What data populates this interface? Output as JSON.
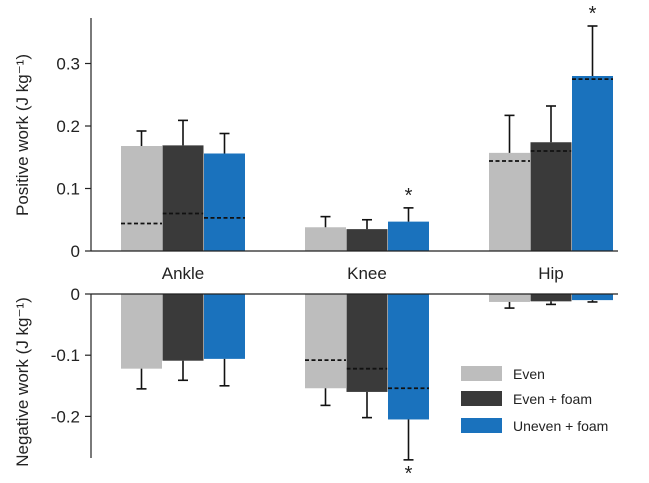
{
  "chart_data": {
    "type": "bar",
    "categories": [
      "Ankle",
      "Knee",
      "Hip"
    ],
    "colors": {
      "Even": "#bdbdbd",
      "Even + foam": "#3a3a3a",
      "Uneven + foam": "#1a72bd"
    },
    "panels": [
      {
        "ylabel": "Positive work (J kg⁻¹)",
        "ylim": [
          0,
          0.37
        ],
        "ticks": [
          0,
          0.1,
          0.2,
          0.3
        ],
        "tick_labels": [
          "0",
          "0.1",
          "0.2",
          "0.3"
        ],
        "series": [
          {
            "name": "Even",
            "values": [
              0.168,
              0.038,
              0.157
            ],
            "errors": [
              0.024,
              0.017,
              0.06
            ],
            "dashed": [
              0.044,
              null,
              0.144
            ]
          },
          {
            "name": "Even + foam",
            "values": [
              0.169,
              0.035,
              0.174
            ],
            "errors": [
              0.04,
              0.015,
              0.058
            ],
            "dashed": [
              0.06,
              null,
              0.16
            ]
          },
          {
            "name": "Uneven + foam",
            "values": [
              0.156,
              0.047,
              0.28
            ],
            "errors": [
              0.032,
              0.022,
              0.08
            ],
            "dashed": [
              0.053,
              null,
              0.275
            ]
          }
        ],
        "significance": [
          null,
          {
            "series": "Uneven + foam",
            "label": "*"
          },
          {
            "series": "Uneven + foam",
            "label": "*"
          }
        ]
      },
      {
        "ylabel": "Negative work (J kg⁻¹)",
        "ylim": [
          -0.27,
          0
        ],
        "ticks": [
          0,
          -0.1,
          -0.2
        ],
        "tick_labels": [
          "0",
          "-0.1",
          "-0.2"
        ],
        "series": [
          {
            "name": "Even",
            "values": [
              -0.122,
              -0.154,
              -0.013
            ],
            "errors": [
              0.033,
              0.028,
              0.01
            ],
            "dashed": [
              null,
              -0.108,
              null
            ]
          },
          {
            "name": "Even + foam",
            "values": [
              -0.109,
              -0.16,
              -0.012
            ],
            "errors": [
              0.032,
              0.042,
              0.005
            ],
            "dashed": [
              null,
              -0.122,
              null
            ]
          },
          {
            "name": "Uneven + foam",
            "values": [
              -0.106,
              -0.205,
              -0.01
            ],
            "errors": [
              0.044,
              0.066,
              0.003
            ],
            "dashed": [
              null,
              -0.154,
              null
            ]
          }
        ],
        "significance": [
          null,
          {
            "series": "Uneven + foam",
            "label": "*"
          },
          null
        ]
      }
    ],
    "legend": {
      "placement": "bottom-right",
      "entries": [
        "Even",
        "Even + foam",
        "Uneven + foam"
      ]
    }
  }
}
